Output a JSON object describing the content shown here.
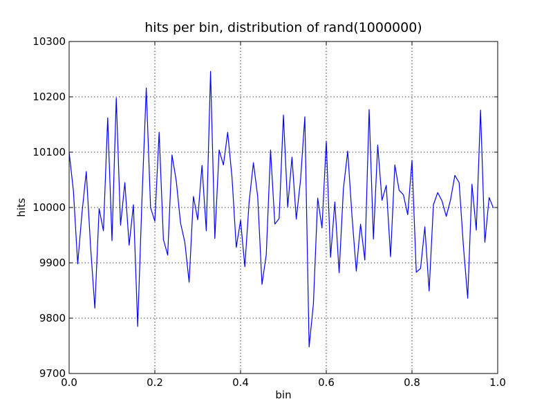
{
  "chart_data": {
    "type": "line",
    "title": "hits per bin, distribution of rand(1000000)",
    "xlabel": "bin",
    "ylabel": "hits",
    "xlim": [
      0.0,
      1.0
    ],
    "ylim": [
      9700,
      10300
    ],
    "grid": true,
    "line_color": "#0000ff",
    "x_ticks": [
      0.0,
      0.2,
      0.4,
      0.6,
      0.8,
      1.0
    ],
    "x_tick_labels": [
      "0.0",
      "0.2",
      "0.4",
      "0.6",
      "0.8",
      "1.0"
    ],
    "y_ticks": [
      9700,
      9800,
      9900,
      10000,
      10100,
      10200,
      10300
    ],
    "y_tick_labels": [
      "9700",
      "9800",
      "9900",
      "10000",
      "10100",
      "10200",
      "10300"
    ],
    "series": [
      {
        "x": [
          0.0,
          0.01,
          0.02,
          0.03,
          0.04,
          0.05,
          0.06,
          0.07,
          0.08,
          0.09,
          0.1,
          0.11,
          0.12,
          0.13,
          0.14,
          0.15,
          0.16,
          0.17,
          0.18,
          0.19,
          0.2,
          0.21,
          0.22,
          0.23,
          0.24,
          0.25,
          0.26,
          0.27,
          0.28,
          0.29,
          0.3,
          0.31,
          0.32,
          0.33,
          0.34,
          0.35,
          0.36,
          0.37,
          0.38,
          0.39,
          0.4,
          0.41,
          0.42,
          0.43,
          0.44,
          0.45,
          0.46,
          0.47,
          0.48,
          0.49,
          0.5,
          0.51,
          0.52,
          0.53,
          0.54,
          0.55,
          0.56,
          0.57,
          0.58,
          0.59,
          0.6,
          0.61,
          0.62,
          0.63,
          0.64,
          0.65,
          0.66,
          0.67,
          0.68,
          0.69,
          0.7,
          0.71,
          0.72,
          0.73,
          0.74,
          0.75,
          0.76,
          0.77,
          0.78,
          0.79,
          0.8,
          0.81,
          0.82,
          0.83,
          0.84,
          0.85,
          0.86,
          0.87,
          0.88,
          0.89,
          0.9,
          0.91,
          0.92,
          0.93,
          0.94,
          0.95,
          0.96,
          0.97,
          0.98,
          0.99
        ],
        "y": [
          10100,
          10030,
          9898,
          9990,
          10065,
          9930,
          9818,
          9998,
          9958,
          10162,
          9940,
          10198,
          9968,
          10045,
          9932,
          10005,
          9785,
          10015,
          10216,
          10000,
          9975,
          10136,
          9942,
          9914,
          10095,
          10048,
          9972,
          9937,
          9865,
          10020,
          9978,
          10076,
          9958,
          10246,
          9944,
          10104,
          10077,
          10136,
          10055,
          9928,
          9977,
          9893,
          10010,
          10081,
          10020,
          9861,
          9915,
          10104,
          9970,
          9980,
          10167,
          10001,
          10091,
          9979,
          10050,
          10164,
          9748,
          9826,
          10017,
          9963,
          10120,
          9910,
          10010,
          9882,
          10034,
          10102,
          9985,
          9885,
          9970,
          9905,
          10177,
          9943,
          10113,
          10013,
          10040,
          9911,
          10077,
          10031,
          10023,
          9987,
          10085,
          9883,
          9890,
          9965,
          9849,
          10005,
          10027,
          10012,
          9984,
          10014,
          10058,
          10045,
          9930,
          9836,
          10042,
          9959,
          10176,
          9937,
          10018,
          9999
        ]
      }
    ]
  }
}
